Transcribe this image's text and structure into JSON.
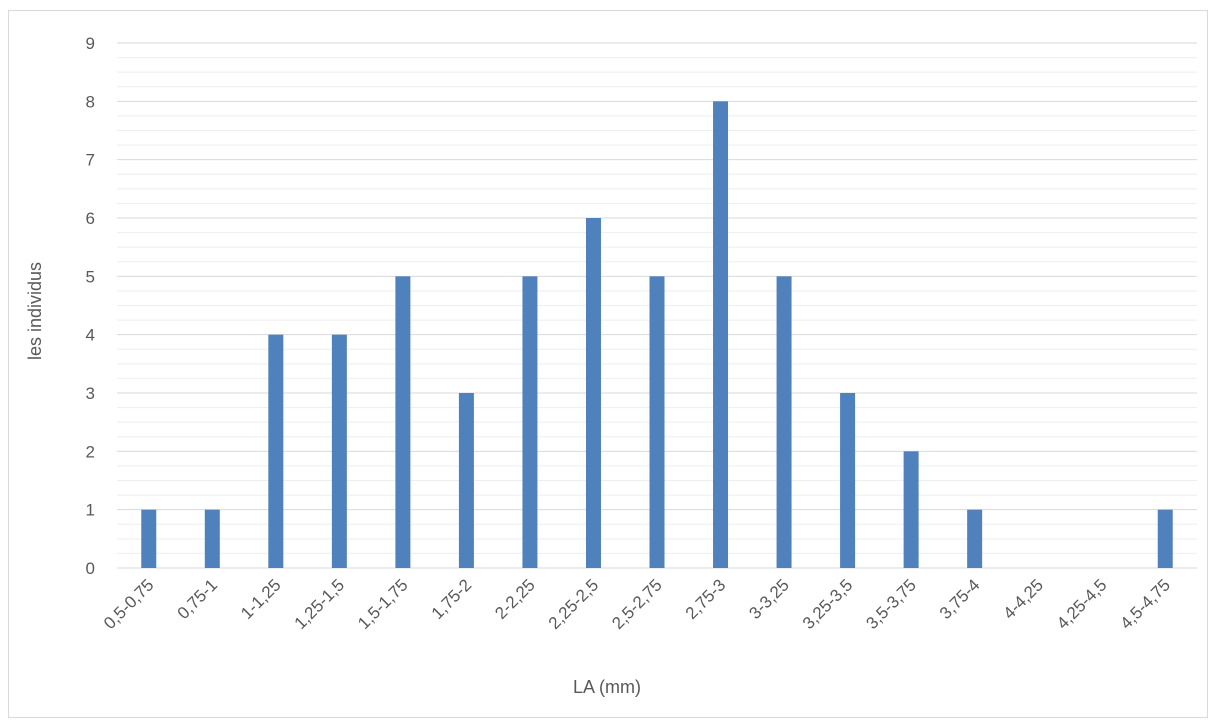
{
  "chart_data": {
    "type": "bar",
    "title": "",
    "xlabel": "LA (mm)",
    "ylabel": "les individus",
    "categories": [
      "0,5-0,75",
      "0,75-1",
      "1-1,25",
      "1,25-1,5",
      "1,5-1,75",
      "1,75-2",
      "2-2,25",
      "2,25-2,5",
      "2,5-2,75",
      "2,75-3",
      "3-3,25",
      "3,25-3,5",
      "3,5-3,75",
      "3,75-4",
      "4-4,25",
      "4,25-4,5",
      "4,5-4,75"
    ],
    "values": [
      1,
      1,
      4,
      4,
      5,
      3,
      5,
      6,
      5,
      8,
      5,
      3,
      2,
      1,
      0,
      0,
      1
    ],
    "ylim": [
      0,
      9
    ],
    "yticks": [
      0,
      1,
      2,
      3,
      4,
      5,
      6,
      7,
      8,
      9
    ],
    "minor_gridlines_per_unit": 4,
    "grid": true,
    "legend": "none",
    "colors": {
      "bar": "#4f81bd",
      "major_grid": "#d9d9d9",
      "minor_grid": "#eeeeee",
      "text": "#595959"
    }
  }
}
